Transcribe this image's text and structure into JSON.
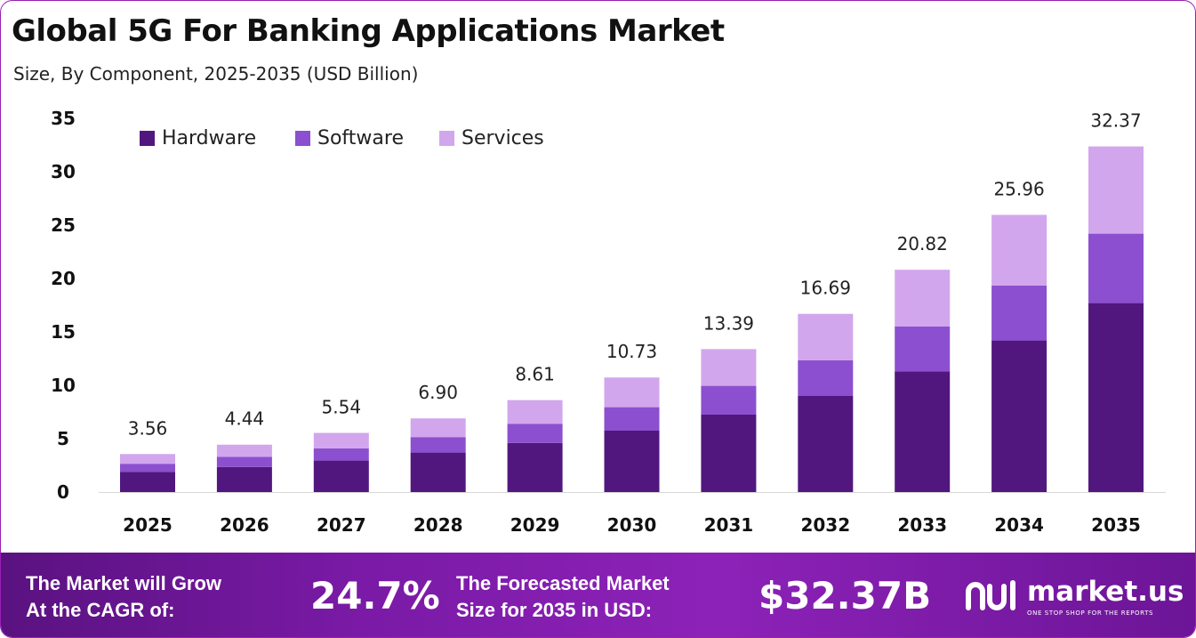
{
  "header": {
    "title": "Global 5G For Banking Applications Market",
    "subtitle": "Size, By Component, 2025-2035 (USD Billion)"
  },
  "chart_data": {
    "type": "bar",
    "stacked": true,
    "categories": [
      "2025",
      "2026",
      "2027",
      "2028",
      "2029",
      "2030",
      "2031",
      "2032",
      "2033",
      "2034",
      "2035"
    ],
    "series": [
      {
        "name": "Hardware",
        "color": "#52177f",
        "values": [
          1.9,
          2.35,
          2.95,
          3.7,
          4.6,
          5.75,
          7.25,
          9.0,
          11.3,
          14.2,
          17.7
        ]
      },
      {
        "name": "Software",
        "color": "#8c4fcf",
        "values": [
          0.75,
          0.95,
          1.15,
          1.45,
          1.8,
          2.2,
          2.7,
          3.35,
          4.2,
          5.15,
          6.5
        ]
      },
      {
        "name": "Services",
        "color": "#d2a6ec",
        "values": [
          0.91,
          1.14,
          1.44,
          1.75,
          2.21,
          2.78,
          3.44,
          4.34,
          5.32,
          6.61,
          8.17
        ]
      }
    ],
    "totals": [
      "3.56",
      "4.44",
      "5.54",
      "6.90",
      "8.61",
      "10.73",
      "13.39",
      "16.69",
      "20.82",
      "25.96",
      "32.37"
    ],
    "ylim": [
      0,
      35
    ],
    "yticks": [
      0,
      5,
      10,
      15,
      20,
      25,
      30,
      35
    ],
    "grid": false,
    "legend_position": "top-left"
  },
  "footer": {
    "cagr_line1": "The Market will Grow",
    "cagr_line2": "At the CAGR of:",
    "cagr_value": "24.7%",
    "forecast_line1": "The Forecasted Market",
    "forecast_line2": "Size for 2035 in USD:",
    "forecast_value": "$32.37B",
    "logo_name": "market.us",
    "logo_tagline": "ONE STOP SHOP FOR THE REPORTS"
  }
}
